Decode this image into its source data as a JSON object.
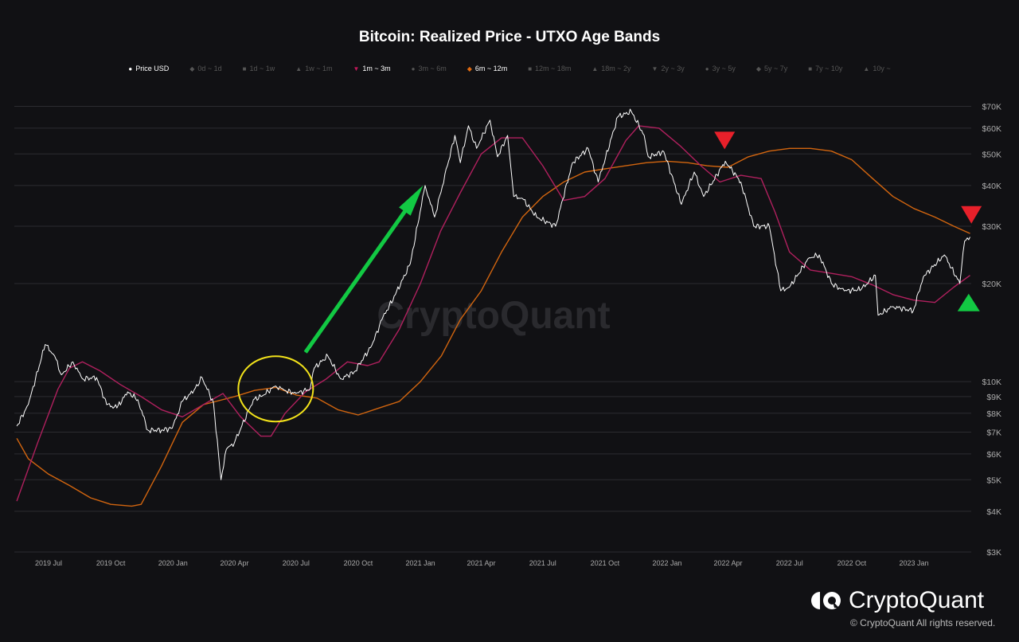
{
  "chart_data": {
    "type": "line",
    "title": "Bitcoin: Realized Price - UTXO Age Bands",
    "y_scale": "log",
    "ylim": [
      3000,
      75000
    ],
    "y_ticks": [
      {
        "value": 70000,
        "label": "$70K"
      },
      {
        "value": 60000,
        "label": "$60K"
      },
      {
        "value": 50000,
        "label": "$50K"
      },
      {
        "value": 40000,
        "label": "$40K"
      },
      {
        "value": 30000,
        "label": "$30K"
      },
      {
        "value": 20000,
        "label": "$20K"
      },
      {
        "value": 10000,
        "label": "$10K"
      },
      {
        "value": 9000,
        "label": "$9K"
      },
      {
        "value": 8000,
        "label": "$8K"
      },
      {
        "value": 7000,
        "label": "$7K"
      },
      {
        "value": 6000,
        "label": "$6K"
      },
      {
        "value": 5000,
        "label": "$5K"
      },
      {
        "value": 4000,
        "label": "$4K"
      },
      {
        "value": 3000,
        "label": "$3K"
      }
    ],
    "x_ticks": [
      {
        "date": "2019-07-01",
        "label": "2019 Jul"
      },
      {
        "date": "2019-10-01",
        "label": "2019 Oct"
      },
      {
        "date": "2020-01-01",
        "label": "2020 Jan"
      },
      {
        "date": "2020-04-01",
        "label": "2020 Apr"
      },
      {
        "date": "2020-07-01",
        "label": "2020 Jul"
      },
      {
        "date": "2020-10-01",
        "label": "2020 Oct"
      },
      {
        "date": "2021-01-01",
        "label": "2021 Jan"
      },
      {
        "date": "2021-04-01",
        "label": "2021 Apr"
      },
      {
        "date": "2021-07-01",
        "label": "2021 Jul"
      },
      {
        "date": "2021-10-01",
        "label": "2021 Oct"
      },
      {
        "date": "2022-01-01",
        "label": "2022 Jan"
      },
      {
        "date": "2022-04-01",
        "label": "2022 Apr"
      },
      {
        "date": "2022-07-01",
        "label": "2022 Jul"
      },
      {
        "date": "2022-10-01",
        "label": "2022 Oct"
      },
      {
        "date": "2023-01-01",
        "label": "2023 Jan"
      }
    ],
    "xlim": [
      "2019-05-12",
      "2023-03-28"
    ],
    "grid": true,
    "legend_position": "top",
    "legend": [
      {
        "label": "Price USD",
        "symbol": "●",
        "active": true,
        "color": "#ffffff"
      },
      {
        "label": "0d ~ 1d",
        "symbol": "◆",
        "active": false
      },
      {
        "label": "1d ~ 1w",
        "symbol": "■",
        "active": false
      },
      {
        "label": "1w ~ 1m",
        "symbol": "▲",
        "active": false
      },
      {
        "label": "1m ~ 3m",
        "symbol": "▼",
        "active": true,
        "color": "#c2185b"
      },
      {
        "label": "3m ~ 6m",
        "symbol": "●",
        "active": false
      },
      {
        "label": "6m ~ 12m",
        "symbol": "◆",
        "active": true,
        "color": "#e06a10"
      },
      {
        "label": "12m ~ 18m",
        "symbol": "■",
        "active": false
      },
      {
        "label": "18m ~ 2y",
        "symbol": "▲",
        "active": false
      },
      {
        "label": "2y ~ 3y",
        "symbol": "▼",
        "active": false
      },
      {
        "label": "3y ~ 5y",
        "symbol": "●",
        "active": false
      },
      {
        "label": "5y ~ 7y",
        "symbol": "◆",
        "active": false
      },
      {
        "label": "7y ~ 10y",
        "symbol": "■",
        "active": false
      },
      {
        "label": "10y ~",
        "symbol": "▲",
        "active": false
      }
    ],
    "series": [
      {
        "name": "Price USD",
        "color": "#ffffff",
        "points": [
          [
            "2019-05-15",
            7300
          ],
          [
            "2019-06-01",
            8500
          ],
          [
            "2019-06-26",
            13000
          ],
          [
            "2019-07-10",
            12000
          ],
          [
            "2019-07-20",
            10500
          ],
          [
            "2019-08-06",
            11500
          ],
          [
            "2019-08-20",
            10200
          ],
          [
            "2019-09-10",
            10300
          ],
          [
            "2019-09-25",
            8500
          ],
          [
            "2019-10-10",
            8300
          ],
          [
            "2019-10-26",
            9300
          ],
          [
            "2019-11-10",
            8800
          ],
          [
            "2019-11-25",
            7100
          ],
          [
            "2019-12-15",
            7100
          ],
          [
            "2019-12-31",
            7200
          ],
          [
            "2020-01-15",
            8700
          ],
          [
            "2020-02-01",
            9400
          ],
          [
            "2020-02-13",
            10300
          ],
          [
            "2020-03-01",
            8600
          ],
          [
            "2020-03-12",
            5000
          ],
          [
            "2020-03-20",
            6200
          ],
          [
            "2020-04-01",
            6500
          ],
          [
            "2020-04-29",
            8800
          ],
          [
            "2020-05-10",
            9000
          ],
          [
            "2020-06-01",
            9700
          ],
          [
            "2020-06-15",
            9400
          ],
          [
            "2020-07-01",
            9200
          ],
          [
            "2020-07-22",
            9500
          ],
          [
            "2020-07-28",
            11000
          ],
          [
            "2020-08-17",
            12000
          ],
          [
            "2020-09-05",
            10200
          ],
          [
            "2020-09-25",
            10700
          ],
          [
            "2020-10-21",
            12900
          ],
          [
            "2020-11-05",
            15500
          ],
          [
            "2020-11-25",
            18500
          ],
          [
            "2020-12-17",
            23000
          ],
          [
            "2021-01-08",
            40000
          ],
          [
            "2021-01-22",
            32000
          ],
          [
            "2021-02-10",
            46000
          ],
          [
            "2021-02-21",
            57000
          ],
          [
            "2021-03-01",
            47000
          ],
          [
            "2021-03-13",
            61000
          ],
          [
            "2021-03-25",
            52000
          ],
          [
            "2021-04-14",
            63500
          ],
          [
            "2021-04-25",
            49000
          ],
          [
            "2021-05-10",
            57000
          ],
          [
            "2021-05-19",
            37000
          ],
          [
            "2021-06-01",
            36500
          ],
          [
            "2021-06-22",
            32000
          ],
          [
            "2021-07-20",
            30000
          ],
          [
            "2021-08-14",
            47000
          ],
          [
            "2021-09-06",
            52000
          ],
          [
            "2021-09-21",
            41000
          ],
          [
            "2021-10-20",
            65000
          ],
          [
            "2021-11-09",
            67500
          ],
          [
            "2021-11-28",
            57000
          ],
          [
            "2021-12-04",
            49000
          ],
          [
            "2021-12-27",
            50800
          ],
          [
            "2022-01-22",
            35000
          ],
          [
            "2022-02-10",
            44000
          ],
          [
            "2022-02-24",
            37000
          ],
          [
            "2022-03-28",
            47500
          ],
          [
            "2022-04-20",
            41000
          ],
          [
            "2022-05-09",
            30000
          ],
          [
            "2022-06-01",
            30000
          ],
          [
            "2022-06-18",
            19000
          ],
          [
            "2022-07-01",
            19500
          ],
          [
            "2022-07-30",
            24000
          ],
          [
            "2022-08-14",
            24500
          ],
          [
            "2022-09-01",
            20000
          ],
          [
            "2022-09-20",
            19000
          ],
          [
            "2022-10-15",
            19200
          ],
          [
            "2022-11-05",
            21200
          ],
          [
            "2022-11-09",
            16000
          ],
          [
            "2022-12-01",
            17000
          ],
          [
            "2022-12-31",
            16500
          ],
          [
            "2023-01-15",
            21000
          ],
          [
            "2023-02-15",
            24500
          ],
          [
            "2023-03-10",
            20000
          ],
          [
            "2023-03-17",
            27000
          ],
          [
            "2023-03-25",
            27800
          ]
        ]
      },
      {
        "name": "1m ~ 3m",
        "color": "#b0205e",
        "points": [
          [
            "2019-05-15",
            4300
          ],
          [
            "2019-06-15",
            6500
          ],
          [
            "2019-07-15",
            9500
          ],
          [
            "2019-08-01",
            11000
          ],
          [
            "2019-08-20",
            11500
          ],
          [
            "2019-09-15",
            10800
          ],
          [
            "2019-10-15",
            9800
          ],
          [
            "2019-11-15",
            9000
          ],
          [
            "2019-12-15",
            8200
          ],
          [
            "2020-01-15",
            7800
          ],
          [
            "2020-02-15",
            8500
          ],
          [
            "2020-03-15",
            9200
          ],
          [
            "2020-04-10",
            7800
          ],
          [
            "2020-05-10",
            6800
          ],
          [
            "2020-05-25",
            6800
          ],
          [
            "2020-06-15",
            8000
          ],
          [
            "2020-07-15",
            9300
          ],
          [
            "2020-08-15",
            10200
          ],
          [
            "2020-09-15",
            11500
          ],
          [
            "2020-10-15",
            11200
          ],
          [
            "2020-11-01",
            11500
          ],
          [
            "2020-12-01",
            14500
          ],
          [
            "2021-01-01",
            20000
          ],
          [
            "2021-01-31",
            29000
          ],
          [
            "2021-03-01",
            38000
          ],
          [
            "2021-04-01",
            50000
          ],
          [
            "2021-05-01",
            56000
          ],
          [
            "2021-06-01",
            56000
          ],
          [
            "2021-07-01",
            46000
          ],
          [
            "2021-08-01",
            36000
          ],
          [
            "2021-09-01",
            37000
          ],
          [
            "2021-10-01",
            42000
          ],
          [
            "2021-11-01",
            55000
          ],
          [
            "2021-11-20",
            61000
          ],
          [
            "2021-12-20",
            60000
          ],
          [
            "2022-01-20",
            53000
          ],
          [
            "2022-02-20",
            46000
          ],
          [
            "2022-03-20",
            41000
          ],
          [
            "2022-04-20",
            43000
          ],
          [
            "2022-05-20",
            42000
          ],
          [
            "2022-06-10",
            33000
          ],
          [
            "2022-07-01",
            25000
          ],
          [
            "2022-08-01",
            22000
          ],
          [
            "2022-09-01",
            21500
          ],
          [
            "2022-10-01",
            21000
          ],
          [
            "2022-11-01",
            19800
          ],
          [
            "2022-12-01",
            18500
          ],
          [
            "2022-12-31",
            17800
          ],
          [
            "2023-02-01",
            17500
          ],
          [
            "2023-03-01",
            19500
          ],
          [
            "2023-03-25",
            21200
          ]
        ]
      },
      {
        "name": "6m ~ 12m",
        "color": "#d2650f",
        "points": [
          [
            "2019-05-15",
            6700
          ],
          [
            "2019-06-01",
            5800
          ],
          [
            "2019-07-01",
            5200
          ],
          [
            "2019-08-01",
            4800
          ],
          [
            "2019-09-01",
            4400
          ],
          [
            "2019-10-01",
            4200
          ],
          [
            "2019-11-01",
            4150
          ],
          [
            "2019-11-15",
            4200
          ],
          [
            "2019-12-15",
            5500
          ],
          [
            "2020-01-15",
            7500
          ],
          [
            "2020-02-15",
            8500
          ],
          [
            "2020-04-01",
            9000
          ],
          [
            "2020-05-01",
            9400
          ],
          [
            "2020-06-01",
            9600
          ],
          [
            "2020-07-01",
            9100
          ],
          [
            "2020-08-01",
            8900
          ],
          [
            "2020-09-01",
            8200
          ],
          [
            "2020-10-01",
            7900
          ],
          [
            "2020-11-01",
            8300
          ],
          [
            "2020-12-01",
            8700
          ],
          [
            "2021-01-01",
            10000
          ],
          [
            "2021-02-01",
            12000
          ],
          [
            "2021-03-01",
            15500
          ],
          [
            "2021-04-01",
            19000
          ],
          [
            "2021-05-01",
            25000
          ],
          [
            "2021-06-01",
            32000
          ],
          [
            "2021-07-01",
            37000
          ],
          [
            "2021-08-01",
            41000
          ],
          [
            "2021-09-01",
            44000
          ],
          [
            "2021-10-01",
            45000
          ],
          [
            "2021-11-01",
            46000
          ],
          [
            "2021-12-01",
            47000
          ],
          [
            "2022-01-01",
            47500
          ],
          [
            "2022-02-01",
            47000
          ],
          [
            "2022-03-01",
            46000
          ],
          [
            "2022-04-01",
            45500
          ],
          [
            "2022-05-01",
            49000
          ],
          [
            "2022-06-01",
            51000
          ],
          [
            "2022-07-01",
            52000
          ],
          [
            "2022-08-01",
            52000
          ],
          [
            "2022-09-01",
            51000
          ],
          [
            "2022-10-01",
            48000
          ],
          [
            "2022-11-01",
            42000
          ],
          [
            "2022-12-01",
            37000
          ],
          [
            "2023-01-01",
            34000
          ],
          [
            "2023-02-01",
            32000
          ],
          [
            "2023-03-01",
            30000
          ],
          [
            "2023-03-25",
            28500
          ]
        ]
      }
    ],
    "annotations": [
      {
        "type": "triangle-down",
        "color": "#e8202a",
        "date": "2022-03-27",
        "value": 55000
      },
      {
        "type": "triangle-down",
        "color": "#e8202a",
        "date": "2023-03-27",
        "value": 32500
      },
      {
        "type": "triangle-up",
        "color": "#12c943",
        "date": "2023-03-23",
        "value": 17500
      },
      {
        "type": "arrow",
        "color": "#12c943",
        "from": [
          "2020-07-15",
          12300
        ],
        "to": [
          "2021-01-05",
          40000
        ]
      },
      {
        "type": "ellipse",
        "color": "#f2e21a",
        "center": [
          "2020-06-01",
          9500
        ]
      }
    ]
  },
  "watermark": "CryptoQuant",
  "footer": {
    "brand": "CryptoQuant",
    "copyright": "© CryptoQuant All rights reserved."
  }
}
